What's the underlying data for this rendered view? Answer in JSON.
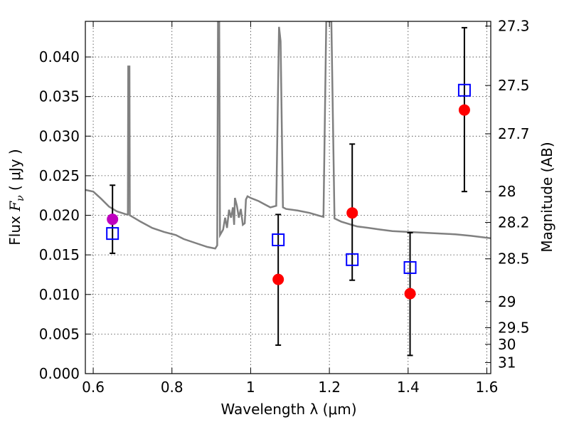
{
  "chart_data": {
    "type": "scatter",
    "xlabel": "Wavelength  λ (μm)",
    "ylabel_main": "Flux  ",
    "ylabel_italic": "F",
    "ylabel_sub": "ν",
    "ylabel_unit": "  ( μJy )",
    "right_ylabel": "Magnitude (AB)",
    "xlim": [
      0.58,
      1.61
    ],
    "ylim": [
      0.0,
      0.0445
    ],
    "x_ticks": [
      {
        "value": 0.6,
        "label": "0.6"
      },
      {
        "value": 0.8,
        "label": "0.8"
      },
      {
        "value": 1.0,
        "label": "1"
      },
      {
        "value": 1.2,
        "label": "1.2"
      },
      {
        "value": 1.4,
        "label": "1.4"
      },
      {
        "value": 1.6,
        "label": "1.6"
      }
    ],
    "y_ticks": [
      {
        "value": 0.0,
        "label": "0.000"
      },
      {
        "value": 0.005,
        "label": "0.005"
      },
      {
        "value": 0.01,
        "label": "0.010"
      },
      {
        "value": 0.015,
        "label": "0.015"
      },
      {
        "value": 0.02,
        "label": "0.020"
      },
      {
        "value": 0.025,
        "label": "0.025"
      },
      {
        "value": 0.03,
        "label": "0.030"
      },
      {
        "value": 0.035,
        "label": "0.035"
      },
      {
        "value": 0.04,
        "label": "0.040"
      }
    ],
    "right_ticks": [
      {
        "label": "27.3",
        "flux": 0.0439
      },
      {
        "label": "27.5",
        "flux": 0.0364
      },
      {
        "label": "27.7",
        "flux": 0.0303
      },
      {
        "label": "28",
        "flux": 0.023
      },
      {
        "label": "28.2",
        "flux": 0.0191
      },
      {
        "label": "28.5",
        "flux": 0.0145
      },
      {
        "label": "29",
        "flux": 0.0091
      },
      {
        "label": "29.5",
        "flux": 0.0058
      },
      {
        "label": "30",
        "flux": 0.0037
      },
      {
        "label": "31",
        "flux": 0.0014
      }
    ],
    "observed_points": [
      {
        "x": 1.07,
        "y": 0.0119,
        "yerr_low": 0.0036,
        "yerr_high": 0.0201
      },
      {
        "x": 1.258,
        "y": 0.0203,
        "yerr_low": 0.0118,
        "yerr_high": 0.029
      },
      {
        "x": 1.405,
        "y": 0.0101,
        "yerr_low": 0.0023,
        "yerr_high": 0.0178
      },
      {
        "x": 1.543,
        "y": 0.0333,
        "yerr_low": 0.023,
        "yerr_high": 0.0437
      }
    ],
    "optical_point": {
      "x": 0.649,
      "y": 0.0195,
      "yerr_low": 0.0152,
      "yerr_high": 0.0238
    },
    "model_points": [
      {
        "x": 0.649,
        "y": 0.0177
      },
      {
        "x": 1.07,
        "y": 0.0169
      },
      {
        "x": 1.258,
        "y": 0.0144
      },
      {
        "x": 1.405,
        "y": 0.0134
      },
      {
        "x": 1.543,
        "y": 0.0358
      }
    ],
    "model_spectrum": [
      [
        0.58,
        0.0232
      ],
      [
        0.6,
        0.023
      ],
      [
        0.62,
        0.0221
      ],
      [
        0.64,
        0.0211
      ],
      [
        0.66,
        0.0205
      ],
      [
        0.685,
        0.0201
      ],
      [
        0.688,
        0.0201
      ],
      [
        0.689,
        0.0388
      ],
      [
        0.692,
        0.0388
      ],
      [
        0.693,
        0.02
      ],
      [
        0.7,
        0.0198
      ],
      [
        0.72,
        0.0192
      ],
      [
        0.75,
        0.0184
      ],
      [
        0.78,
        0.0179
      ],
      [
        0.81,
        0.0175
      ],
      [
        0.83,
        0.017
      ],
      [
        0.86,
        0.0165
      ],
      [
        0.89,
        0.016
      ],
      [
        0.91,
        0.0158
      ],
      [
        0.915,
        0.0162
      ],
      [
        0.917,
        0.0445
      ],
      [
        0.92,
        0.0445
      ],
      [
        0.922,
        0.0175
      ],
      [
        0.93,
        0.0182
      ],
      [
        0.935,
        0.0197
      ],
      [
        0.94,
        0.0184
      ],
      [
        0.945,
        0.0207
      ],
      [
        0.95,
        0.0197
      ],
      [
        0.955,
        0.021
      ],
      [
        0.958,
        0.0188
      ],
      [
        0.96,
        0.0222
      ],
      [
        0.965,
        0.0212
      ],
      [
        0.97,
        0.0197
      ],
      [
        0.975,
        0.0208
      ],
      [
        0.98,
        0.0188
      ],
      [
        0.985,
        0.019
      ],
      [
        0.988,
        0.022
      ],
      [
        0.992,
        0.0224
      ],
      [
        1.0,
        0.0222
      ],
      [
        1.02,
        0.0218
      ],
      [
        1.035,
        0.0214
      ],
      [
        1.05,
        0.021
      ],
      [
        1.065,
        0.0212
      ],
      [
        1.072,
        0.0438
      ],
      [
        1.076,
        0.042
      ],
      [
        1.082,
        0.021
      ],
      [
        1.09,
        0.0208
      ],
      [
        1.12,
        0.0206
      ],
      [
        1.15,
        0.0203
      ],
      [
        1.17,
        0.02
      ],
      [
        1.185,
        0.0198
      ],
      [
        1.192,
        0.0445
      ],
      [
        1.2,
        0.0445
      ],
      [
        1.205,
        0.0445
      ],
      [
        1.213,
        0.0196
      ],
      [
        1.23,
        0.0192
      ],
      [
        1.25,
        0.0189
      ],
      [
        1.27,
        0.0186
      ],
      [
        1.3,
        0.0184
      ],
      [
        1.33,
        0.0182
      ],
      [
        1.36,
        0.018
      ],
      [
        1.4,
        0.0179
      ],
      [
        1.44,
        0.0178
      ],
      [
        1.48,
        0.0177
      ],
      [
        1.52,
        0.0176
      ],
      [
        1.56,
        0.0174
      ],
      [
        1.61,
        0.0171
      ]
    ],
    "colors": {
      "observed": "#ff0000",
      "optical": "#bf00bf",
      "model_marker": "#0000ff",
      "spectrum": "#808080",
      "errorbar": "#000000"
    }
  }
}
